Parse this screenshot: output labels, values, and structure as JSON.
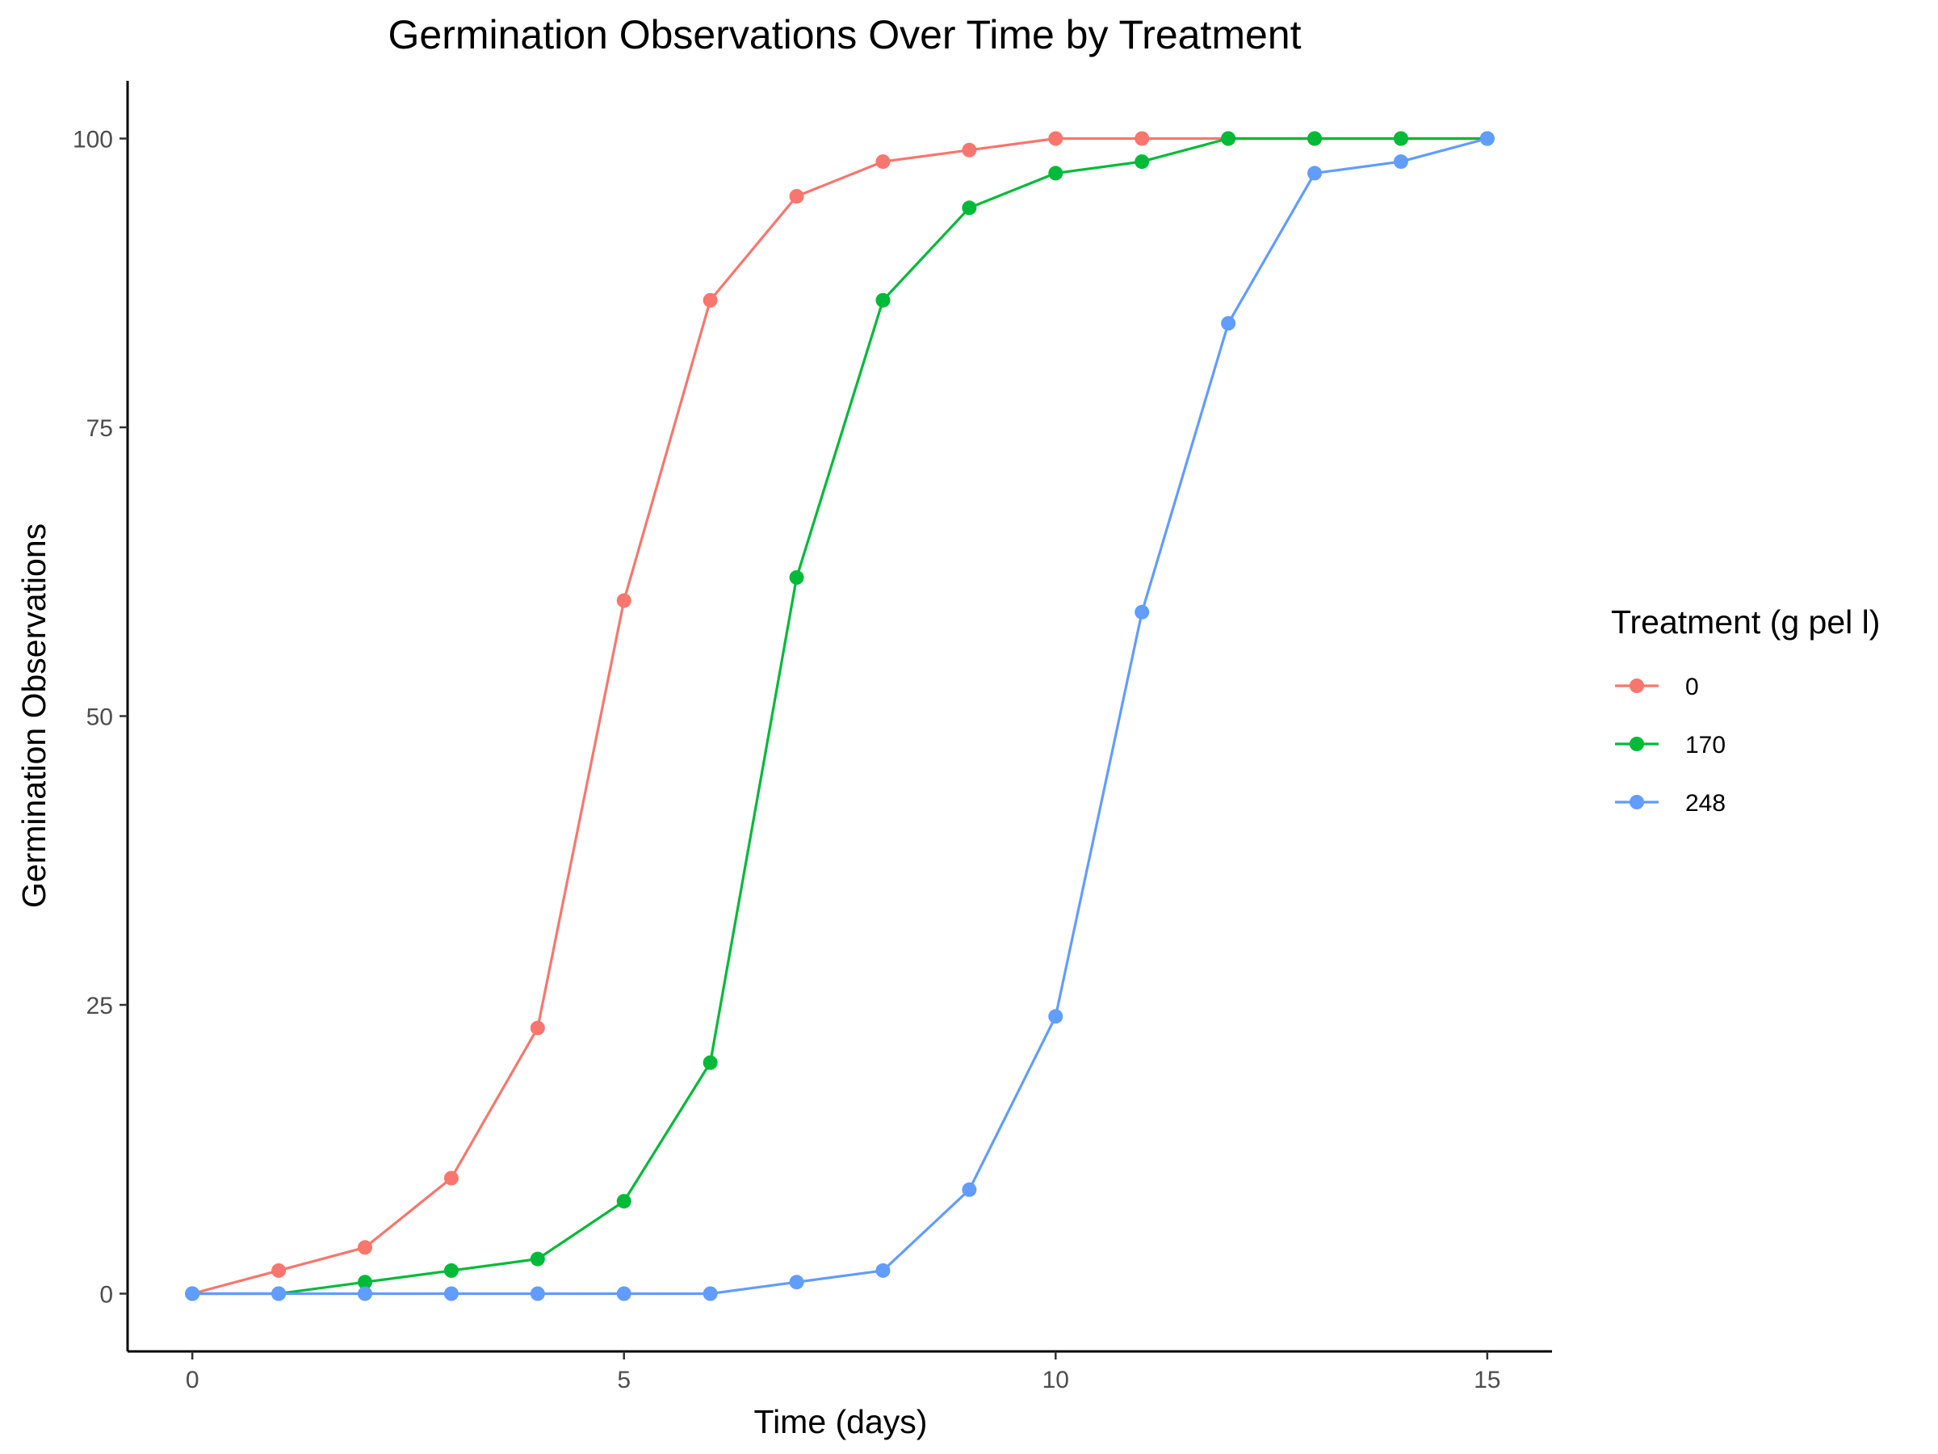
{
  "chart_data": {
    "type": "line",
    "title": "Germination Observations Over Time by Treatment",
    "xlabel": "Time (days)",
    "ylabel": "Germination Observations",
    "xlim": [
      -0.75,
      15.75
    ],
    "ylim": [
      -5,
      105
    ],
    "x_ticks": [
      0,
      5,
      10,
      15
    ],
    "y_ticks": [
      0,
      25,
      50,
      75,
      100
    ],
    "x_tick_labels": [
      "0",
      "5",
      "10",
      "15"
    ],
    "y_tick_labels": [
      "0",
      "25",
      "50",
      "75",
      "100"
    ],
    "x": [
      0,
      1,
      2,
      3,
      4,
      5,
      6,
      7,
      8,
      9,
      10,
      11,
      12,
      13,
      14,
      15
    ],
    "grid": false,
    "legend": {
      "title": "Treatment (g pel l)",
      "placement": "right"
    },
    "series": [
      {
        "name": "0",
        "color": "#F8766D",
        "values": [
          0,
          2,
          4,
          10,
          23,
          60,
          86,
          95,
          98,
          99,
          100,
          100,
          100,
          100,
          100,
          100
        ]
      },
      {
        "name": "170",
        "color": "#00BA38",
        "values": [
          0,
          0,
          1,
          2,
          3,
          8,
          20,
          62,
          86,
          94,
          97,
          98,
          100,
          100,
          100,
          100
        ]
      },
      {
        "name": "248",
        "color": "#619CFF",
        "values": [
          0,
          0,
          0,
          0,
          0,
          0,
          0,
          1,
          2,
          9,
          24,
          59,
          84,
          97,
          98,
          100
        ]
      }
    ]
  }
}
